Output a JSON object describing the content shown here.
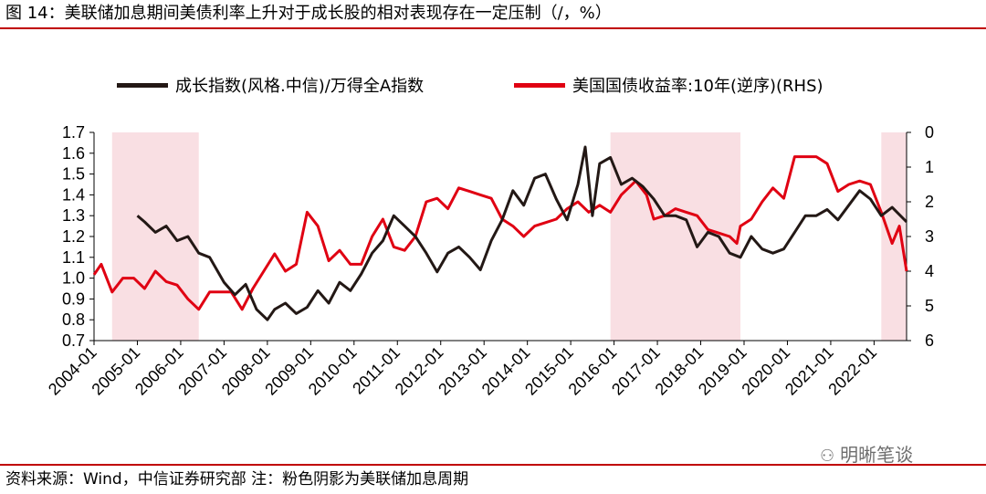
{
  "header": {
    "title": "图 14：美联储加息期间美债利率上升对于成长股的相对表现存在一定压制（/，%）"
  },
  "footer": {
    "source": "资料来源：Wind，中信证券研究部    注：粉色阴影为美联储加息周期"
  },
  "watermark": {
    "text": "明晰笔谈",
    "icon": "wechat-icon"
  },
  "colors": {
    "accent_rule": "#c00000",
    "growth_line": "#231815",
    "yield_line": "#e00012",
    "shade": "#f9dfe3"
  },
  "chart_data": {
    "type": "line",
    "x_tick_labels": [
      "2004-01",
      "2005-01",
      "2006-01",
      "2007-01",
      "2008-01",
      "2009-01",
      "2010-01",
      "2011-01",
      "2012-01",
      "2013-01",
      "2014-01",
      "2015-01",
      "2016-01",
      "2017-01",
      "2018-01",
      "2019-01",
      "2020-01",
      "2021-01",
      "2022-01"
    ],
    "x_range": [
      "2004-01",
      "2022-10"
    ],
    "y_left": {
      "min": 0.7,
      "max": 1.7,
      "ticks": [
        "1.7",
        "1.6",
        "1.5",
        "1.4",
        "1.3",
        "1.2",
        "1.1",
        "1.0",
        "0.9",
        "0.8",
        "0.7"
      ]
    },
    "y_right": {
      "min": 0,
      "max": 6,
      "inverted": true,
      "ticks": [
        "0",
        "1",
        "2",
        "3",
        "4",
        "5",
        "6"
      ]
    },
    "shaded_periods": [
      {
        "start": "2004-06",
        "end": "2006-06"
      },
      {
        "start": "2015-12",
        "end": "2018-12"
      },
      {
        "start": "2022-03",
        "end": "2022-10"
      }
    ],
    "series": [
      {
        "name": "成长指数(风格.中信)/万得全A指数",
        "axis": "left",
        "color": "#231815",
        "points": [
          [
            "2005-01",
            1.3
          ],
          [
            "2005-03",
            1.27
          ],
          [
            "2005-06",
            1.22
          ],
          [
            "2005-09",
            1.25
          ],
          [
            "2005-12",
            1.18
          ],
          [
            "2006-03",
            1.2
          ],
          [
            "2006-06",
            1.12
          ],
          [
            "2006-09",
            1.1
          ],
          [
            "2007-01",
            0.98
          ],
          [
            "2007-04",
            0.92
          ],
          [
            "2007-07",
            0.97
          ],
          [
            "2007-10",
            0.85
          ],
          [
            "2008-01",
            0.8
          ],
          [
            "2008-03",
            0.85
          ],
          [
            "2008-06",
            0.88
          ],
          [
            "2008-09",
            0.83
          ],
          [
            "2008-12",
            0.86
          ],
          [
            "2009-03",
            0.94
          ],
          [
            "2009-06",
            0.88
          ],
          [
            "2009-09",
            0.98
          ],
          [
            "2009-12",
            0.94
          ],
          [
            "2010-03",
            1.02
          ],
          [
            "2010-06",
            1.12
          ],
          [
            "2010-09",
            1.18
          ],
          [
            "2010-12",
            1.3
          ],
          [
            "2011-03",
            1.25
          ],
          [
            "2011-06",
            1.2
          ],
          [
            "2011-09",
            1.12
          ],
          [
            "2011-12",
            1.03
          ],
          [
            "2012-03",
            1.12
          ],
          [
            "2012-06",
            1.15
          ],
          [
            "2012-09",
            1.1
          ],
          [
            "2012-12",
            1.04
          ],
          [
            "2013-03",
            1.18
          ],
          [
            "2013-06",
            1.28
          ],
          [
            "2013-09",
            1.42
          ],
          [
            "2013-12",
            1.35
          ],
          [
            "2014-03",
            1.48
          ],
          [
            "2014-06",
            1.5
          ],
          [
            "2014-09",
            1.38
          ],
          [
            "2014-12",
            1.28
          ],
          [
            "2015-03",
            1.45
          ],
          [
            "2015-05",
            1.63
          ],
          [
            "2015-07",
            1.3
          ],
          [
            "2015-09",
            1.55
          ],
          [
            "2015-12",
            1.58
          ],
          [
            "2016-03",
            1.45
          ],
          [
            "2016-06",
            1.48
          ],
          [
            "2016-09",
            1.44
          ],
          [
            "2016-12",
            1.38
          ],
          [
            "2017-03",
            1.3
          ],
          [
            "2017-06",
            1.3
          ],
          [
            "2017-09",
            1.28
          ],
          [
            "2017-12",
            1.15
          ],
          [
            "2018-03",
            1.22
          ],
          [
            "2018-06",
            1.2
          ],
          [
            "2018-09",
            1.12
          ],
          [
            "2018-12",
            1.1
          ],
          [
            "2019-03",
            1.2
          ],
          [
            "2019-06",
            1.14
          ],
          [
            "2019-09",
            1.12
          ],
          [
            "2019-12",
            1.14
          ],
          [
            "2020-03",
            1.22
          ],
          [
            "2020-06",
            1.3
          ],
          [
            "2020-09",
            1.3
          ],
          [
            "2020-12",
            1.33
          ],
          [
            "2021-03",
            1.28
          ],
          [
            "2021-06",
            1.35
          ],
          [
            "2021-09",
            1.42
          ],
          [
            "2021-12",
            1.38
          ],
          [
            "2022-03",
            1.3
          ],
          [
            "2022-06",
            1.34
          ],
          [
            "2022-10",
            1.27
          ]
        ]
      },
      {
        "name": "美国国债收益率:10年(逆序)(RHS)",
        "axis": "right",
        "color": "#e00012",
        "points": [
          [
            "2004-01",
            4.1
          ],
          [
            "2004-03",
            3.8
          ],
          [
            "2004-06",
            4.6
          ],
          [
            "2004-09",
            4.2
          ],
          [
            "2004-12",
            4.2
          ],
          [
            "2005-03",
            4.5
          ],
          [
            "2005-06",
            4.0
          ],
          [
            "2005-09",
            4.3
          ],
          [
            "2005-12",
            4.4
          ],
          [
            "2006-03",
            4.8
          ],
          [
            "2006-06",
            5.1
          ],
          [
            "2006-09",
            4.6
          ],
          [
            "2006-12",
            4.6
          ],
          [
            "2007-03",
            4.6
          ],
          [
            "2007-06",
            5.1
          ],
          [
            "2007-09",
            4.5
          ],
          [
            "2007-12",
            4.0
          ],
          [
            "2008-03",
            3.5
          ],
          [
            "2008-06",
            4.0
          ],
          [
            "2008-09",
            3.8
          ],
          [
            "2008-12",
            2.3
          ],
          [
            "2009-03",
            2.7
          ],
          [
            "2009-06",
            3.7
          ],
          [
            "2009-09",
            3.4
          ],
          [
            "2009-12",
            3.8
          ],
          [
            "2010-03",
            3.8
          ],
          [
            "2010-06",
            3.0
          ],
          [
            "2010-09",
            2.5
          ],
          [
            "2010-12",
            3.3
          ],
          [
            "2011-03",
            3.4
          ],
          [
            "2011-06",
            3.0
          ],
          [
            "2011-09",
            2.0
          ],
          [
            "2011-12",
            1.9
          ],
          [
            "2012-03",
            2.2
          ],
          [
            "2012-06",
            1.6
          ],
          [
            "2012-09",
            1.7
          ],
          [
            "2012-12",
            1.8
          ],
          [
            "2013-03",
            1.9
          ],
          [
            "2013-06",
            2.5
          ],
          [
            "2013-09",
            2.7
          ],
          [
            "2013-12",
            3.0
          ],
          [
            "2014-03",
            2.7
          ],
          [
            "2014-06",
            2.6
          ],
          [
            "2014-09",
            2.5
          ],
          [
            "2014-12",
            2.2
          ],
          [
            "2015-03",
            2.0
          ],
          [
            "2015-06",
            2.3
          ],
          [
            "2015-09",
            2.1
          ],
          [
            "2015-12",
            2.3
          ],
          [
            "2016-03",
            1.8
          ],
          [
            "2016-07",
            1.4
          ],
          [
            "2016-10",
            1.8
          ],
          [
            "2016-12",
            2.5
          ],
          [
            "2017-03",
            2.4
          ],
          [
            "2017-06",
            2.2
          ],
          [
            "2017-09",
            2.3
          ],
          [
            "2017-12",
            2.4
          ],
          [
            "2018-03",
            2.8
          ],
          [
            "2018-06",
            2.9
          ],
          [
            "2018-09",
            3.0
          ],
          [
            "2018-11",
            3.2
          ],
          [
            "2018-12",
            2.7
          ],
          [
            "2019-03",
            2.5
          ],
          [
            "2019-06",
            2.0
          ],
          [
            "2019-09",
            1.6
          ],
          [
            "2019-12",
            1.9
          ],
          [
            "2020-03",
            0.7
          ],
          [
            "2020-06",
            0.7
          ],
          [
            "2020-09",
            0.7
          ],
          [
            "2020-12",
            0.9
          ],
          [
            "2021-03",
            1.7
          ],
          [
            "2021-06",
            1.5
          ],
          [
            "2021-09",
            1.4
          ],
          [
            "2021-12",
            1.5
          ],
          [
            "2022-03",
            2.3
          ],
          [
            "2022-06",
            3.2
          ],
          [
            "2022-08",
            2.7
          ],
          [
            "2022-10",
            4.0
          ]
        ]
      }
    ]
  }
}
